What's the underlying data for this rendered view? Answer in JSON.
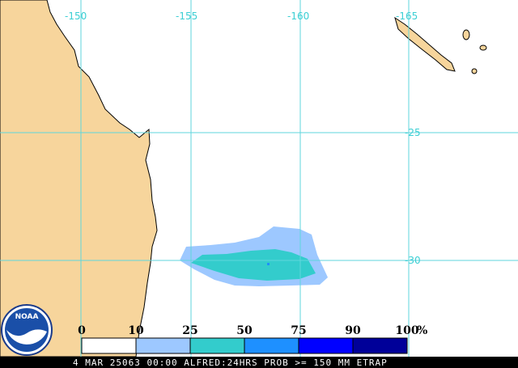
{
  "map": {
    "longitude_labels": [
      "-150",
      "-155",
      "-160",
      "-165"
    ],
    "latitude_labels": [
      "-25",
      "-30"
    ],
    "legend": {
      "ticks": [
        0,
        10,
        25,
        50,
        75,
        90,
        100
      ],
      "unit": "%",
      "colors": [
        "#ffffff",
        "#9dc8ff",
        "#33cccc",
        "#1e90ff",
        "#0000ff",
        "#000099"
      ]
    },
    "logo": "NOAA",
    "footer": "4 MAR 25063 00:00 ALFRED:24HRS PROB >= 150 MM ETRAP"
  }
}
